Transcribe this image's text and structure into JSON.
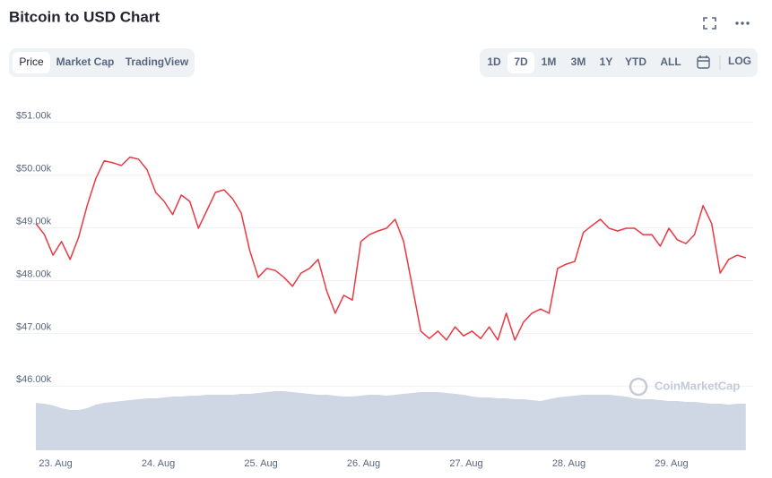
{
  "header": {
    "title": "Bitcoin to USD Chart"
  },
  "tabs": {
    "items": [
      "Price",
      "Market Cap",
      "TradingView"
    ],
    "active": 0
  },
  "ranges": {
    "items": [
      "1D",
      "7D",
      "1M",
      "3M",
      "1Y",
      "YTD",
      "ALL"
    ],
    "active": 1,
    "log": "LOG"
  },
  "watermark": "CoinMarketCap",
  "chart_data": {
    "type": "line",
    "categories": [
      null,
      null,
      "23. Aug",
      null,
      null,
      null,
      null,
      null,
      null,
      null,
      null,
      null,
      null,
      null,
      "24. Aug",
      null,
      null,
      null,
      null,
      null,
      null,
      null,
      null,
      null,
      null,
      null,
      "25. Aug",
      null,
      null,
      null,
      null,
      null,
      null,
      null,
      null,
      null,
      null,
      null,
      "26. Aug",
      null,
      null,
      null,
      null,
      null,
      null,
      null,
      null,
      null,
      null,
      null,
      "27. Aug",
      null,
      null,
      null,
      null,
      null,
      null,
      null,
      null,
      null,
      null,
      null,
      "28. Aug",
      null,
      null,
      null,
      null,
      null,
      null,
      null,
      null,
      null,
      null,
      null,
      "29. Aug",
      null,
      null,
      null,
      null,
      null,
      null,
      null,
      null,
      null
    ],
    "values": [
      48980,
      48770,
      48380,
      48640,
      48300,
      48720,
      49320,
      49830,
      50170,
      50130,
      50080,
      50240,
      50200,
      50000,
      49570,
      49400,
      49150,
      49520,
      49400,
      48890,
      49230,
      49570,
      49620,
      49450,
      49180,
      48470,
      47960,
      48130,
      48090,
      47960,
      47790,
      48040,
      48130,
      48300,
      47700,
      47280,
      47620,
      47530,
      48640,
      48770,
      48840,
      48890,
      49060,
      48640,
      47790,
      46940,
      46800,
      46940,
      46770,
      47020,
      46850,
      46940,
      46800,
      47020,
      46770,
      47280,
      46770,
      47110,
      47280,
      47360,
      47280,
      48130,
      48210,
      48260,
      48810,
      48940,
      49060,
      48890,
      48840,
      48890,
      48890,
      48770,
      48770,
      48550,
      48890,
      48670,
      48600,
      48770,
      49320,
      48980,
      48040,
      48300,
      48380,
      48330
    ],
    "color": "#ea3943",
    "ylim": [
      45700,
      51300
    ],
    "yticks": [
      {
        "value": 46000,
        "label": "$46.00k"
      },
      {
        "value": 47000,
        "label": "$47.00k"
      },
      {
        "value": 48000,
        "label": "$48.00k"
      },
      {
        "value": 49000,
        "label": "$49.00k"
      },
      {
        "value": 50000,
        "label": "$50.00k"
      },
      {
        "value": 51000,
        "label": "$51.00k"
      }
    ],
    "grid": true,
    "volume": {
      "color": "#cfd6e4",
      "ylim": [
        0,
        70
      ],
      "values": [
        53,
        52,
        50,
        47,
        45,
        45,
        47,
        51,
        53,
        54,
        55,
        56,
        57,
        58,
        58,
        59,
        60,
        60,
        61,
        61,
        62,
        62,
        62,
        62,
        63,
        63,
        64,
        65,
        66,
        66,
        65,
        64,
        63,
        62,
        62,
        61,
        60,
        60,
        61,
        62,
        62,
        61,
        62,
        63,
        64,
        65,
        65,
        65,
        64,
        63,
        62,
        60,
        59,
        59,
        58,
        58,
        57,
        57,
        56,
        55,
        57,
        59,
        60,
        61,
        62,
        62,
        62,
        62,
        61,
        60,
        58,
        57,
        57,
        56,
        55,
        55,
        54,
        54,
        53,
        52,
        52,
        51,
        52,
        52
      ]
    }
  }
}
